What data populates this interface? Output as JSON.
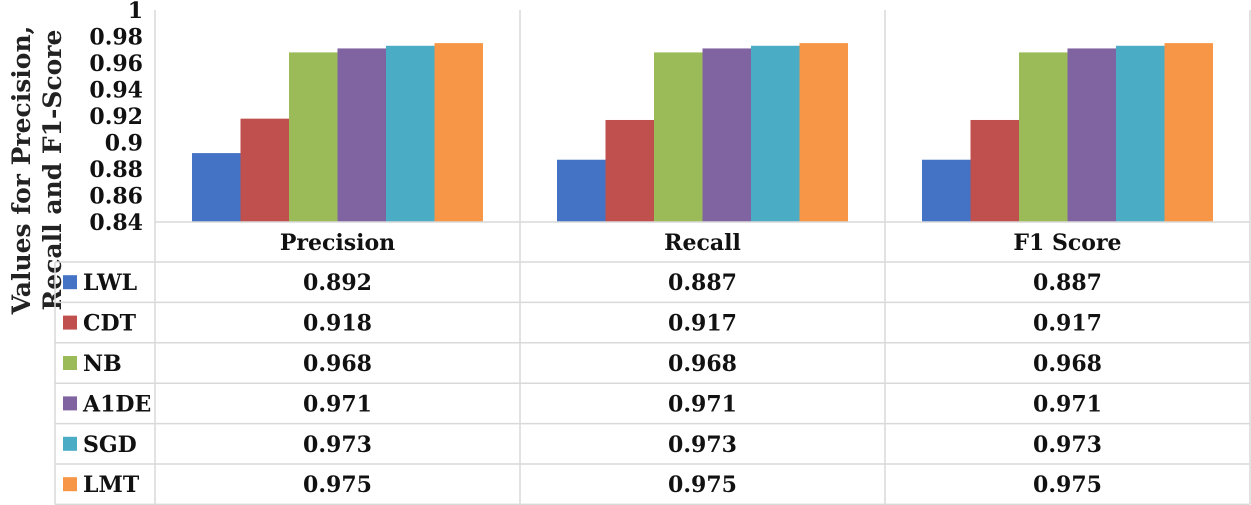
{
  "chart_data": {
    "type": "bar",
    "title": "",
    "ylabel": "Values for Precision, Recall and F1-Score",
    "ylabel_lines": [
      "Values for Precision,",
      "Recall and F1-Score"
    ],
    "xlabel": "",
    "categories": [
      "Precision",
      "Recall",
      "F1 Score"
    ],
    "ylim": [
      0.84,
      1
    ],
    "yticks": [
      "0.84",
      "0.86",
      "0.88",
      "0.9",
      "0.92",
      "0.94",
      "0.96",
      "0.98",
      "1"
    ],
    "ytick_values": [
      0.84,
      0.86,
      0.88,
      0.9,
      0.92,
      0.94,
      0.96,
      0.98,
      1
    ],
    "series": [
      {
        "name": "LWL",
        "color": "#4472C4",
        "values": [
          0.892,
          0.887,
          0.887
        ],
        "labels": [
          "0.892",
          "0.887",
          "0.887"
        ]
      },
      {
        "name": "CDT",
        "color": "#C0504D",
        "values": [
          0.918,
          0.917,
          0.917
        ],
        "labels": [
          "0.918",
          "0.917",
          "0.917"
        ]
      },
      {
        "name": "NB",
        "color": "#9BBB59",
        "values": [
          0.968,
          0.968,
          0.968
        ],
        "labels": [
          "0.968",
          "0.968",
          "0.968"
        ]
      },
      {
        "name": "A1DE",
        "color": "#8064A2",
        "values": [
          0.971,
          0.971,
          0.971
        ],
        "labels": [
          "0.971",
          "0.971",
          "0.971"
        ]
      },
      {
        "name": "SGD",
        "color": "#4BACC6",
        "values": [
          0.973,
          0.973,
          0.973
        ],
        "labels": [
          "0.973",
          "0.973",
          "0.973"
        ]
      },
      {
        "name": "LMT",
        "color": "#F79646",
        "values": [
          0.975,
          0.975,
          0.975
        ],
        "labels": [
          "0.975",
          "0.975",
          "0.975"
        ]
      }
    ],
    "legend": "data-table-left",
    "grid": false
  }
}
